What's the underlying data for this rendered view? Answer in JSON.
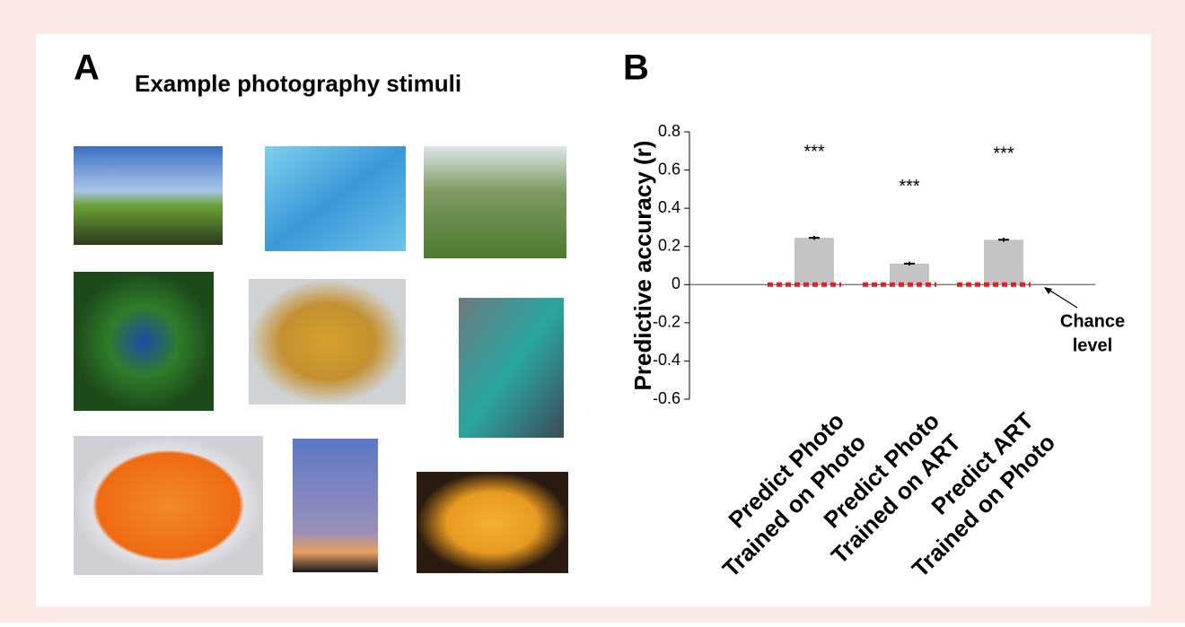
{
  "panels": {
    "a": {
      "label": "A",
      "title": "Example photography stimuli"
    },
    "b": {
      "label": "B"
    }
  },
  "chart_data": {
    "type": "bar",
    "y_label": "Predictive accuracy (r)",
    "categories": [
      [
        "Predict Photo",
        "Trained on Photo"
      ],
      [
        "Predict Photo",
        "Trained on ART"
      ],
      [
        "Predict ART",
        "Trained on Photo"
      ]
    ],
    "values": [
      0.245,
      0.11,
      0.235
    ],
    "errors": [
      0.01,
      0.01,
      0.01
    ],
    "annotations": [
      "***",
      "***",
      "***"
    ],
    "color": "#c4c4c4",
    "chance_level": 0,
    "chance_color": "#e0202a",
    "chance_label": [
      "Chance",
      "level"
    ],
    "ylim": [
      -0.6,
      0.8
    ],
    "yticks": [
      -0.6,
      -0.4,
      -0.2,
      0,
      0.2,
      0.4,
      0.6,
      0.8
    ]
  }
}
